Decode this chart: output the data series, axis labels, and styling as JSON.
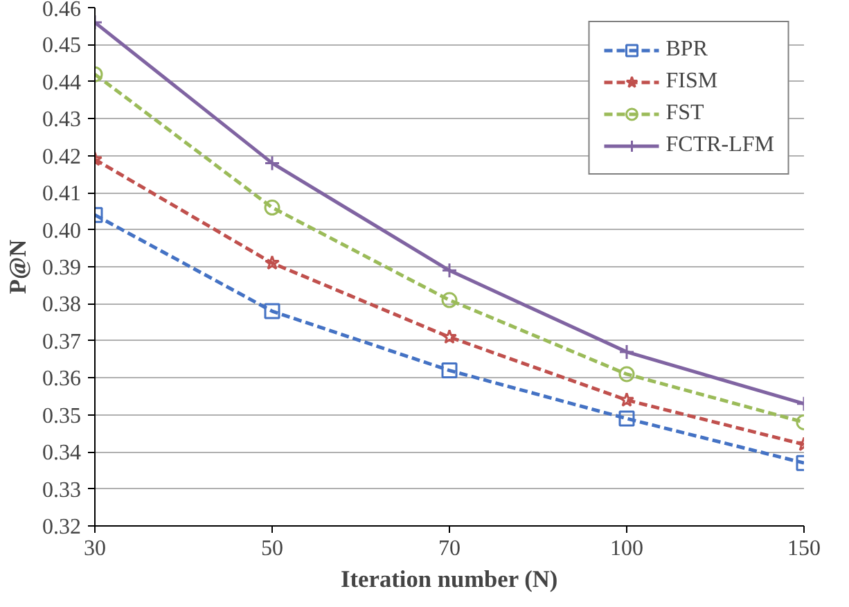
{
  "chart_data": {
    "type": "line",
    "xlabel": "Iteration number (N)",
    "ylabel": "P@N",
    "categories": [
      "30",
      "50",
      "70",
      "100",
      "150"
    ],
    "ylim": [
      0.32,
      0.46
    ],
    "yticks": [
      0.32,
      0.33,
      0.34,
      0.35,
      0.36,
      0.37,
      0.38,
      0.39,
      {
        "value": 0.4,
        "label": "0.40"
      },
      0.41,
      0.42,
      0.43,
      0.44,
      0.45,
      0.46
    ],
    "grid": "y",
    "legend": "top right",
    "series": [
      {
        "name": "BPR",
        "color": "#4472c4",
        "marker": "square",
        "line_style": "dashed",
        "values": [
          0.404,
          0.378,
          0.362,
          0.349,
          0.337
        ]
      },
      {
        "name": "FISM",
        "color": "#c0504d",
        "marker": "star",
        "line_style": "dashed",
        "values": [
          0.419,
          0.391,
          0.371,
          0.354,
          0.342
        ]
      },
      {
        "name": "FST",
        "color": "#9bbb59",
        "marker": "circle",
        "line_style": "dashed",
        "values": [
          0.442,
          0.406,
          0.381,
          0.361,
          0.348
        ]
      },
      {
        "name": "FCTR-LFM",
        "color": "#8064a2",
        "marker": "cross",
        "line_style": "solid",
        "values": [
          0.456,
          0.418,
          0.389,
          0.367,
          0.353
        ]
      }
    ]
  }
}
